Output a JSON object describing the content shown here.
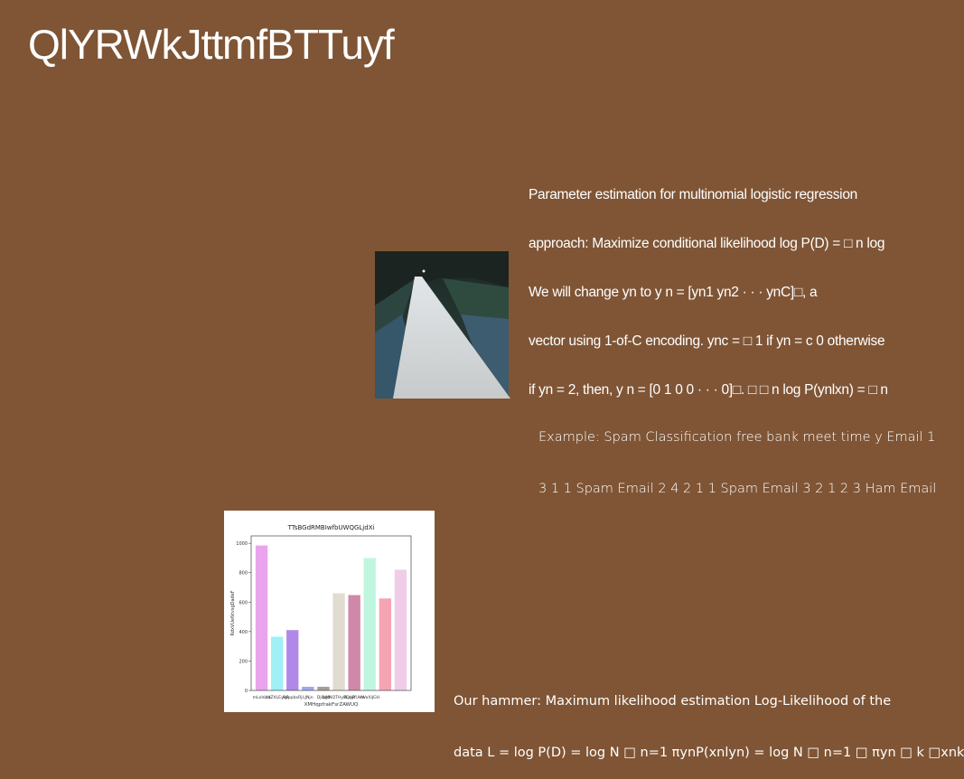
{
  "slide": {
    "title": "QlYRWkJttmfBTTuyf",
    "paragraph1": [
      "Parameter estimation for multinomial logistic regression",
      "approach: Maximize conditional likelihood log P(D) = □ n log",
      "We will change yn to y n = [yn1 yn2 · · · ynC]□, a",
      "vector using 1-of-C encoding. ync = □ 1 if yn = c 0 otherwise",
      "if yn = 2, then, y n = [0 1 0 0 · · · 0]□. □ □ n log P(ynlxn) = □ n"
    ],
    "paragraph2": [
      "Example: Spam Classification free bank meet time y Email 1",
      "3 1 1 Spam Email 2 4 2 1 1 Spam Email 3 2 1 2 3 Ham Email"
    ],
    "paragraph3": [
      "Our hammer: Maximum likelihood estimation Log-Likelihood of the",
      "data L = log P(D) = log N □ n=1 πynP(xnlyn) = log N □ n=1 □ πyn □ k □xnk"
    ]
  },
  "colors": {
    "background": "#7f5535",
    "text": "#ffffff"
  },
  "chart_data": {
    "type": "bar",
    "title": "TTsBGdRMBIwfbUWQGLjdXi",
    "xlabel": "XMHqpfrakFsrZAWUQ",
    "ylabel": "RdxVUeNrvsgDadeF",
    "ylim": [
      0,
      1050
    ],
    "yticks": [
      0,
      200,
      400,
      600,
      800,
      1000
    ],
    "categories": [
      "mLoVuct",
      "hbZXLEyqR",
      "PpppbxRj",
      "LJNjn",
      "DjQgd",
      "bMNQTHyBQnR",
      "fLcjyfUHe",
      "rWaXiJGH",
      "",
      ""
    ],
    "tick_labels": [
      "mLoVuct",
      "hbZXLEyqR",
      "PpppbxRj",
      "LJNjn",
      "DjQgd",
      "bMNQTHyBQnR",
      "fLcjyfUHe",
      "rWaXiJGH"
    ],
    "values": [
      985,
      365,
      410,
      25,
      25,
      660,
      648,
      900,
      625,
      820
    ],
    "bar_colors": [
      "#eaa4ee",
      "#9ff0f7",
      "#b089e8",
      "#a3a6ef",
      "#a89d98",
      "#e0ddd0",
      "#d088a8",
      "#c0f6e0",
      "#f5a4b4",
      "#efcde8"
    ]
  }
}
